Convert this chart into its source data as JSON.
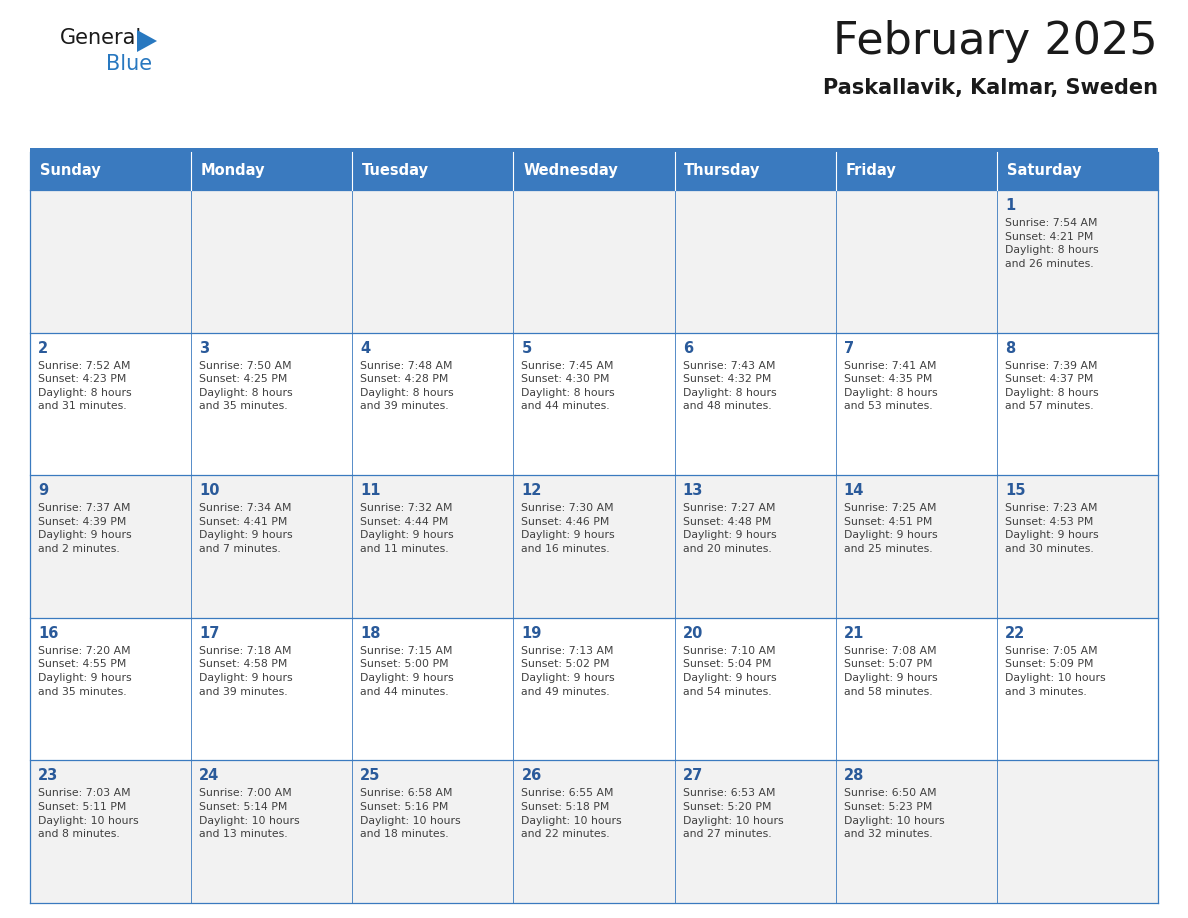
{
  "title": "February 2025",
  "subtitle": "Paskallavik, Kalmar, Sweden",
  "header_bg_color": "#3a7abf",
  "header_text_color": "#ffffff",
  "cell_bg_even_color": "#f2f2f2",
  "cell_bg_odd_color": "#ffffff",
  "day_number_color": "#2a5a9a",
  "text_color": "#404040",
  "border_color": "#3a7abf",
  "logo_text_color": "#1a1a1a",
  "logo_blue_color": "#2878c0",
  "title_color": "#1a1a1a",
  "subtitle_color": "#1a1a1a",
  "days_of_week": [
    "Sunday",
    "Monday",
    "Tuesday",
    "Wednesday",
    "Thursday",
    "Friday",
    "Saturday"
  ],
  "weeks": [
    [
      {
        "day": null,
        "info": null
      },
      {
        "day": null,
        "info": null
      },
      {
        "day": null,
        "info": null
      },
      {
        "day": null,
        "info": null
      },
      {
        "day": null,
        "info": null
      },
      {
        "day": null,
        "info": null
      },
      {
        "day": "1",
        "info": "Sunrise: 7:54 AM\nSunset: 4:21 PM\nDaylight: 8 hours\nand 26 minutes."
      }
    ],
    [
      {
        "day": "2",
        "info": "Sunrise: 7:52 AM\nSunset: 4:23 PM\nDaylight: 8 hours\nand 31 minutes."
      },
      {
        "day": "3",
        "info": "Sunrise: 7:50 AM\nSunset: 4:25 PM\nDaylight: 8 hours\nand 35 minutes."
      },
      {
        "day": "4",
        "info": "Sunrise: 7:48 AM\nSunset: 4:28 PM\nDaylight: 8 hours\nand 39 minutes."
      },
      {
        "day": "5",
        "info": "Sunrise: 7:45 AM\nSunset: 4:30 PM\nDaylight: 8 hours\nand 44 minutes."
      },
      {
        "day": "6",
        "info": "Sunrise: 7:43 AM\nSunset: 4:32 PM\nDaylight: 8 hours\nand 48 minutes."
      },
      {
        "day": "7",
        "info": "Sunrise: 7:41 AM\nSunset: 4:35 PM\nDaylight: 8 hours\nand 53 minutes."
      },
      {
        "day": "8",
        "info": "Sunrise: 7:39 AM\nSunset: 4:37 PM\nDaylight: 8 hours\nand 57 minutes."
      }
    ],
    [
      {
        "day": "9",
        "info": "Sunrise: 7:37 AM\nSunset: 4:39 PM\nDaylight: 9 hours\nand 2 minutes."
      },
      {
        "day": "10",
        "info": "Sunrise: 7:34 AM\nSunset: 4:41 PM\nDaylight: 9 hours\nand 7 minutes."
      },
      {
        "day": "11",
        "info": "Sunrise: 7:32 AM\nSunset: 4:44 PM\nDaylight: 9 hours\nand 11 minutes."
      },
      {
        "day": "12",
        "info": "Sunrise: 7:30 AM\nSunset: 4:46 PM\nDaylight: 9 hours\nand 16 minutes."
      },
      {
        "day": "13",
        "info": "Sunrise: 7:27 AM\nSunset: 4:48 PM\nDaylight: 9 hours\nand 20 minutes."
      },
      {
        "day": "14",
        "info": "Sunrise: 7:25 AM\nSunset: 4:51 PM\nDaylight: 9 hours\nand 25 minutes."
      },
      {
        "day": "15",
        "info": "Sunrise: 7:23 AM\nSunset: 4:53 PM\nDaylight: 9 hours\nand 30 minutes."
      }
    ],
    [
      {
        "day": "16",
        "info": "Sunrise: 7:20 AM\nSunset: 4:55 PM\nDaylight: 9 hours\nand 35 minutes."
      },
      {
        "day": "17",
        "info": "Sunrise: 7:18 AM\nSunset: 4:58 PM\nDaylight: 9 hours\nand 39 minutes."
      },
      {
        "day": "18",
        "info": "Sunrise: 7:15 AM\nSunset: 5:00 PM\nDaylight: 9 hours\nand 44 minutes."
      },
      {
        "day": "19",
        "info": "Sunrise: 7:13 AM\nSunset: 5:02 PM\nDaylight: 9 hours\nand 49 minutes."
      },
      {
        "day": "20",
        "info": "Sunrise: 7:10 AM\nSunset: 5:04 PM\nDaylight: 9 hours\nand 54 minutes."
      },
      {
        "day": "21",
        "info": "Sunrise: 7:08 AM\nSunset: 5:07 PM\nDaylight: 9 hours\nand 58 minutes."
      },
      {
        "day": "22",
        "info": "Sunrise: 7:05 AM\nSunset: 5:09 PM\nDaylight: 10 hours\nand 3 minutes."
      }
    ],
    [
      {
        "day": "23",
        "info": "Sunrise: 7:03 AM\nSunset: 5:11 PM\nDaylight: 10 hours\nand 8 minutes."
      },
      {
        "day": "24",
        "info": "Sunrise: 7:00 AM\nSunset: 5:14 PM\nDaylight: 10 hours\nand 13 minutes."
      },
      {
        "day": "25",
        "info": "Sunrise: 6:58 AM\nSunset: 5:16 PM\nDaylight: 10 hours\nand 18 minutes."
      },
      {
        "day": "26",
        "info": "Sunrise: 6:55 AM\nSunset: 5:18 PM\nDaylight: 10 hours\nand 22 minutes."
      },
      {
        "day": "27",
        "info": "Sunrise: 6:53 AM\nSunset: 5:20 PM\nDaylight: 10 hours\nand 27 minutes."
      },
      {
        "day": "28",
        "info": "Sunrise: 6:50 AM\nSunset: 5:23 PM\nDaylight: 10 hours\nand 32 minutes."
      },
      {
        "day": null,
        "info": null
      }
    ]
  ]
}
